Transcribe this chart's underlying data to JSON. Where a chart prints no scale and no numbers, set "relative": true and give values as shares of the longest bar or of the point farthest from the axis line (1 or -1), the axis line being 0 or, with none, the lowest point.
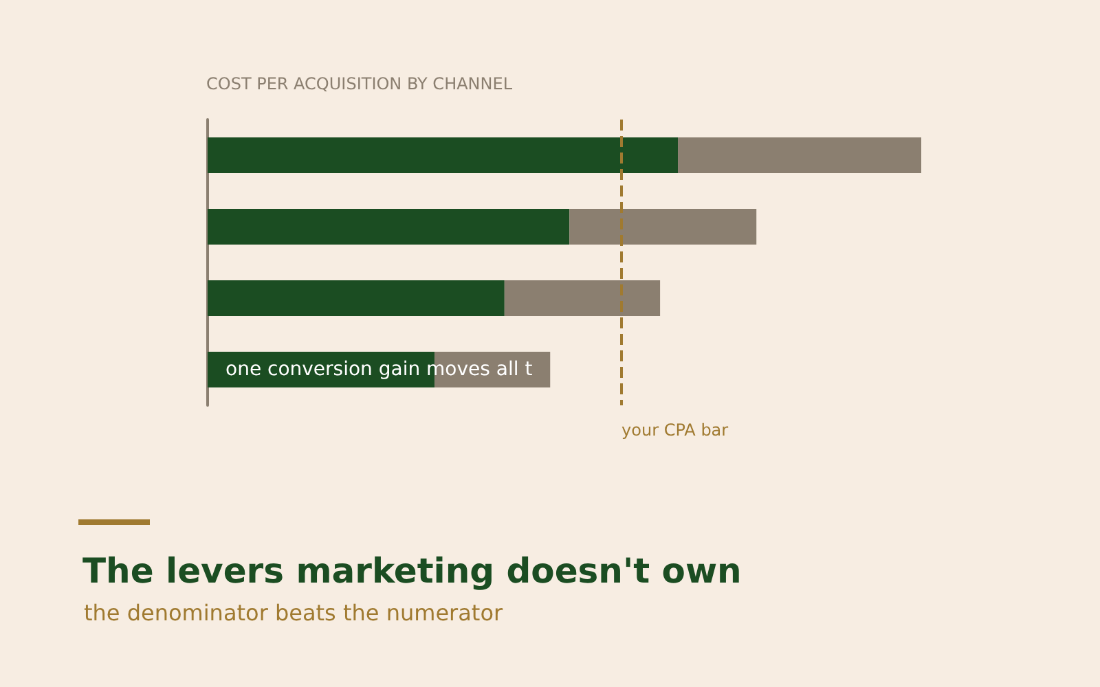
{
  "chart_data": {
    "type": "bar",
    "orientation": "horizontal",
    "stacked": true,
    "relative": true,
    "title": "The levers marketing doesn't own",
    "subtitle": "the denominator beats the numerator",
    "categories": [
      null,
      null,
      null,
      null
    ],
    "series": [
      {
        "color": "#1b4d22",
        "values": [
          0.659,
          0.507,
          0.416,
          0.318
        ]
      },
      {
        "color": "#8b7f70",
        "values": [
          0.341,
          0.262,
          0.218,
          0.162
        ]
      }
    ],
    "ref_lines": [
      {
        "axis": "x",
        "value": 0.576,
        "label": "your CPA bar",
        "color": "#a07a30",
        "line_style": "dashed"
      }
    ],
    "annotations": [
      "COST PER ACQUISITION BY CHANNEL",
      "one conversion gain moves all t"
    ]
  }
}
